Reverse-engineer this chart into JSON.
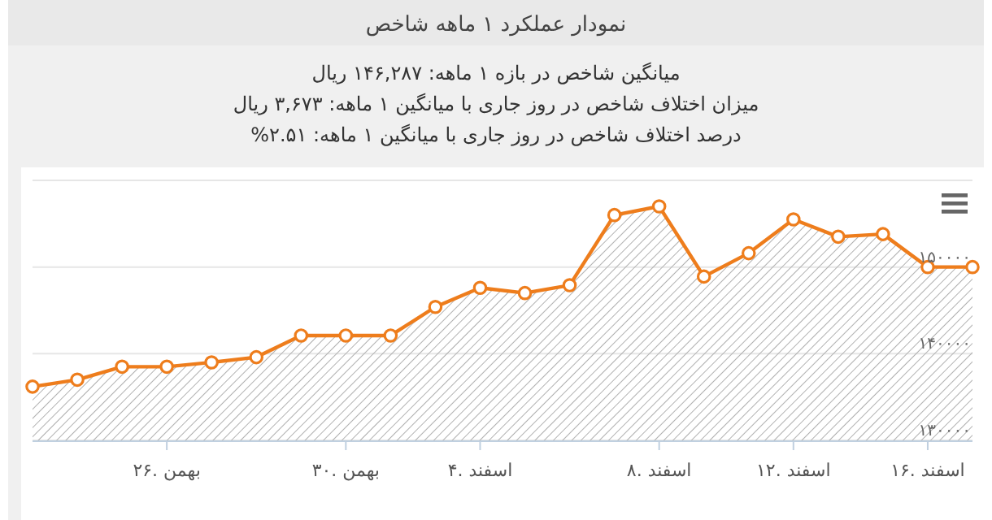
{
  "chart_data": {
    "type": "area",
    "title": "نمودار عملکرد ۱ ماهه شاخص",
    "subtitle": "میانگین شاخص در بازه ۱ ماهه: ۱۴۶,۲۸۷ ریال",
    "annotations": [
      "میزان اختلاف شاخص در روز جاری با میانگین ۱ ماهه: ۳,۶۷۳ ریال",
      "درصد اختلاف شاخص در روز جاری با میانگین ۱ ماهه: ۲.۵۱%"
    ],
    "categories": [
      null,
      null,
      null,
      "۲۶. بهمن",
      null,
      null,
      null,
      "۳۰. بهمن",
      null,
      null,
      "۴. اسفند",
      null,
      null,
      null,
      "۸. اسفند",
      null,
      null,
      "۱۲. اسفند",
      null,
      null,
      "۱۶. اسفند",
      null
    ],
    "values": [
      136200,
      137000,
      138500,
      138500,
      139000,
      139600,
      142100,
      142100,
      142100,
      145400,
      147600,
      147000,
      147900,
      156000,
      157000,
      148900,
      151600,
      155500,
      153500,
      153800,
      150000,
      150000
    ],
    "color": "#ee7d1c",
    "ylim": [
      130000,
      160000
    ],
    "yticks": [
      {
        "value": 130000,
        "label": "۱۳۰۰۰۰"
      },
      {
        "value": 140000,
        "label": "۱۴۰۰۰۰"
      },
      {
        "value": 150000,
        "label": "۱۵۰۰۰۰"
      },
      {
        "value": 160000,
        "label": null
      }
    ],
    "grid": "y",
    "marker": "circle"
  }
}
